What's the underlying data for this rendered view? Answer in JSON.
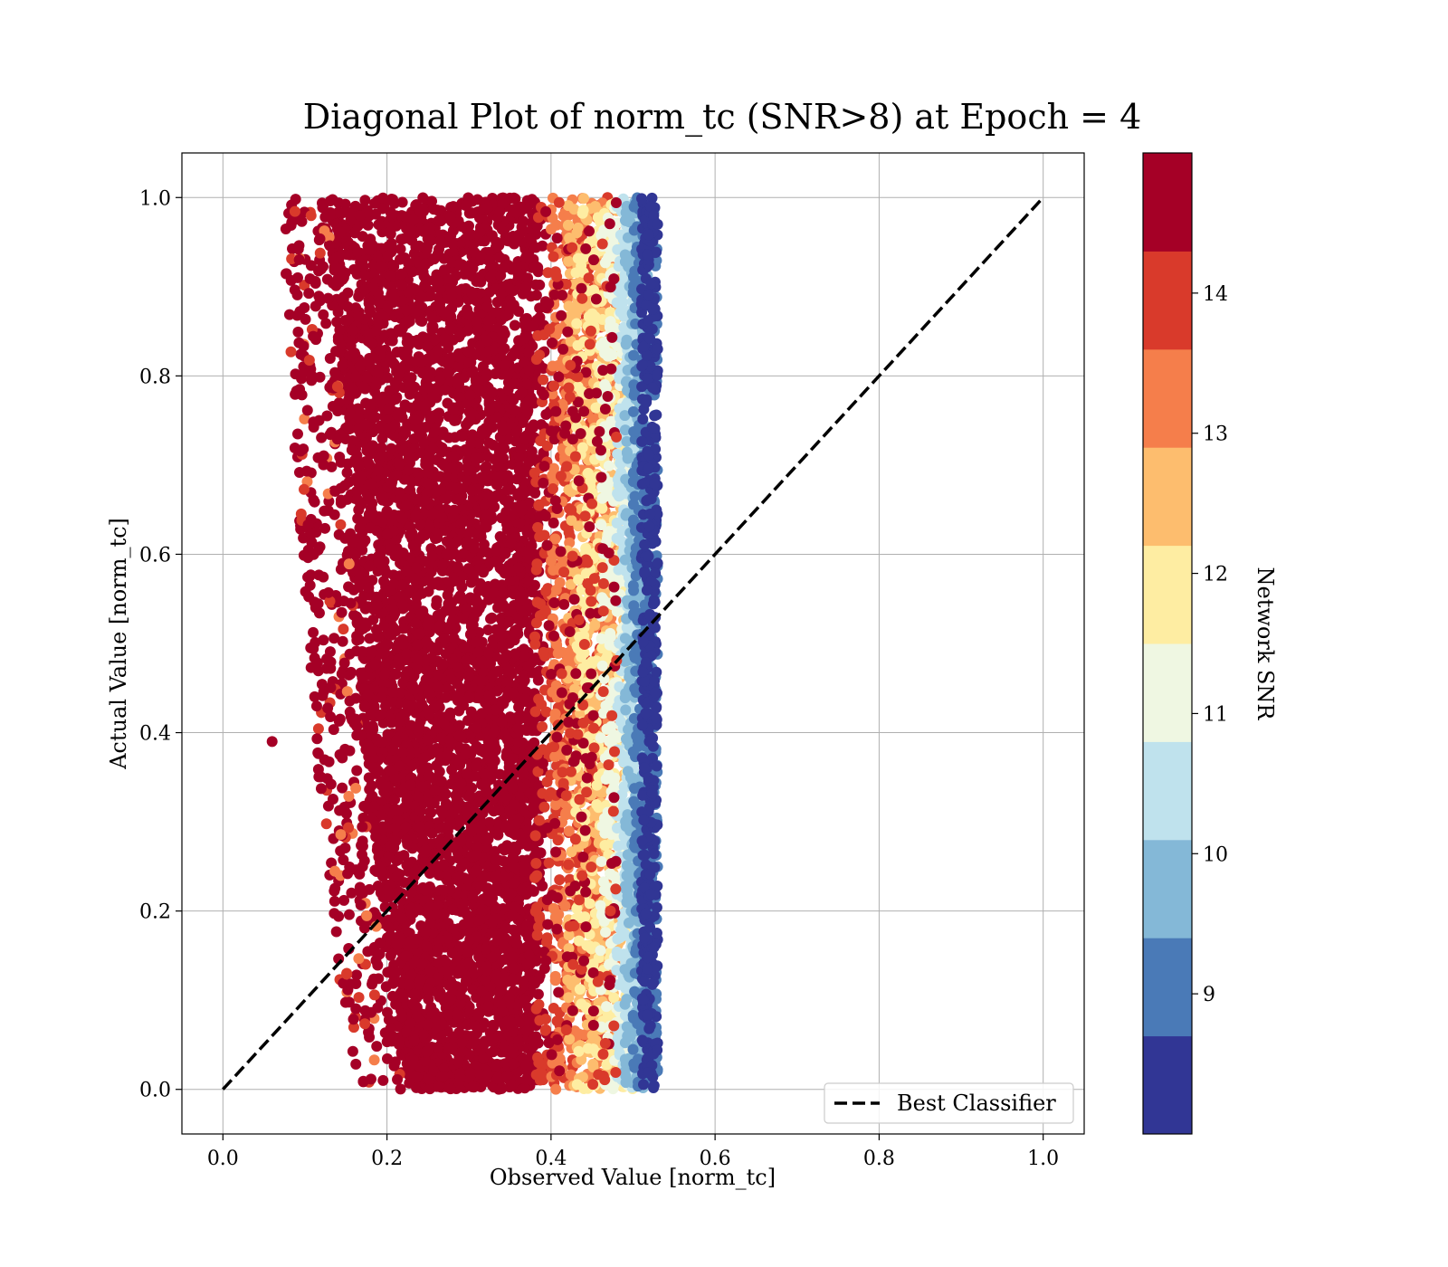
{
  "chart_data": {
    "type": "scatter",
    "title": "Diagonal Plot of norm_tc (SNR>8) at Epoch = 4",
    "xlabel": "Observed Value [norm_tc]",
    "ylabel": "Actual Value [norm_tc]",
    "xlim": [
      -0.05,
      1.05
    ],
    "ylim": [
      -0.05,
      1.05
    ],
    "x_ticks": [
      "0.0",
      "0.2",
      "0.4",
      "0.6",
      "0.8",
      "1.0"
    ],
    "y_ticks": [
      "0.0",
      "0.2",
      "0.4",
      "0.6",
      "0.8",
      "1.0"
    ],
    "grid": true,
    "legend": {
      "position": "lower-right",
      "entries": [
        {
          "label": "Best Classifier",
          "style": "black-dashed-line"
        }
      ]
    },
    "reference_line": {
      "label": "Best Classifier",
      "from": [
        0.0,
        0.0
      ],
      "to": [
        1.0,
        1.0
      ],
      "color": "#000000"
    },
    "colorbar": {
      "label": "Network SNR",
      "range": [
        8.0,
        15.0
      ],
      "tick_labels": [
        "9",
        "10",
        "11",
        "12",
        "13",
        "14"
      ],
      "tick_values": [
        9,
        10,
        11,
        12,
        13,
        14
      ],
      "colors": [
        "#313695",
        "#4a7ab7",
        "#84b8d7",
        "#bfe2ed",
        "#eff7e2",
        "#feeda2",
        "#fdbd6e",
        "#f57e4b",
        "#d93a2b",
        "#a50026"
      ]
    },
    "point_bands": [
      {
        "snr": 14.5,
        "color": "#a50026",
        "x_range": [
          0.13,
          0.39
        ],
        "y_range": [
          0.0,
          1.0
        ],
        "note": "dense core"
      },
      {
        "snr": 13.5,
        "color": "#d93a2b",
        "x_range": [
          0.38,
          0.48
        ],
        "y_range": [
          0.0,
          1.0
        ]
      },
      {
        "snr": 12.5,
        "color": "#f57e4b",
        "x_range": [
          0.4,
          0.48
        ],
        "y_range": [
          0.0,
          1.0
        ]
      },
      {
        "snr": 12.0,
        "color": "#fdbd6e",
        "x_range": [
          0.42,
          0.49
        ],
        "y_range": [
          0.0,
          1.0
        ]
      },
      {
        "snr": 11.5,
        "color": "#feeda2",
        "x_range": [
          0.43,
          0.5
        ],
        "y_range": [
          0.0,
          1.0
        ]
      },
      {
        "snr": 11.0,
        "color": "#eff7e2",
        "x_range": [
          0.46,
          0.51
        ],
        "y_range": [
          0.0,
          1.0
        ]
      },
      {
        "snr": 10.5,
        "color": "#bfe2ed",
        "x_range": [
          0.48,
          0.51
        ],
        "y_range": [
          0.0,
          1.0
        ]
      },
      {
        "snr": 10.0,
        "color": "#84b8d7",
        "x_range": [
          0.49,
          0.52
        ],
        "y_range": [
          0.0,
          1.0
        ]
      },
      {
        "snr": 9.5,
        "color": "#4a7ab7",
        "x_range": [
          0.5,
          0.53
        ],
        "y_range": [
          0.0,
          1.0
        ]
      },
      {
        "snr": 8.5,
        "color": "#313695",
        "x_range": [
          0.51,
          0.53
        ],
        "y_range": [
          0.0,
          1.0
        ]
      }
    ],
    "outlier_points": [
      {
        "x": 0.06,
        "y": 0.39,
        "snr": 14.8
      },
      {
        "x": 0.53,
        "y": 0.59,
        "snr": 8.3
      },
      {
        "x": 0.53,
        "y": 0.97,
        "snr": 8.4
      },
      {
        "x": 0.53,
        "y": 0.83,
        "snr": 8.5
      }
    ]
  }
}
